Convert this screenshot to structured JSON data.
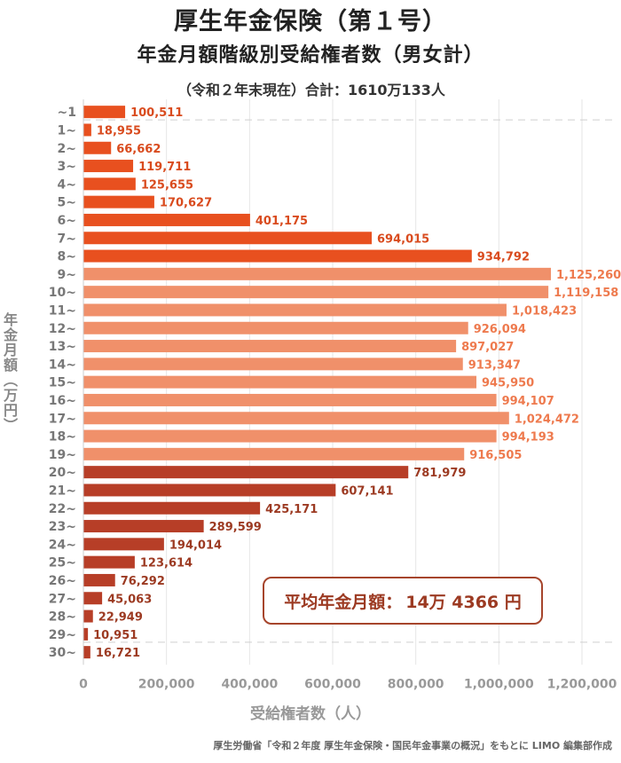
{
  "title1": "厚生年金保険（第１号）",
  "title2": "年金月額階級別受給権者数（男女計）",
  "subtitle": "（令和２年末現在）合計：1610万133人",
  "ylabel": "年金月額（万円）",
  "xlabel": "受給権者数（人）",
  "source": "厚生労働省「令和２年度 厚生年金保険・国民年金事業の概況」をもとに LIMO 編集部作成",
  "average": {
    "label": "平均年金月額：",
    "value": "14万 4366 円"
  },
  "colors": {
    "low": "#e8501f",
    "mid_low": "#ee7040",
    "mid_high": "#f0906a",
    "high": "#b73e27",
    "grid": "#e6e6e6",
    "tick": "#999999"
  },
  "chart_data": {
    "type": "bar",
    "orientation": "horizontal",
    "categories": [
      "~1",
      "1~",
      "2~",
      "3~",
      "4~",
      "5~",
      "6~",
      "7~",
      "8~",
      "9~",
      "10~",
      "11~",
      "12~",
      "13~",
      "14~",
      "15~",
      "16~",
      "17~",
      "18~",
      "19~",
      "20~",
      "21~",
      "22~",
      "23~",
      "24~",
      "25~",
      "26~",
      "27~",
      "28~",
      "29~",
      "30~"
    ],
    "values": [
      100511,
      18955,
      66662,
      119711,
      125655,
      170627,
      401175,
      694015,
      934792,
      1125260,
      1119158,
      1018423,
      926094,
      897027,
      913347,
      945950,
      994107,
      1024472,
      994193,
      916505,
      781979,
      607141,
      425171,
      289599,
      194014,
      123614,
      76292,
      45063,
      22949,
      10951,
      16721
    ],
    "value_labels": [
      "100,511",
      "18,955",
      "66,662",
      "119,711",
      "125,655",
      "170,627",
      "401,175",
      "694,015",
      "934,792",
      "1,125,260",
      "1,119,158",
      "1,018,423",
      "926,094",
      "897,027",
      "913,347",
      "945,950",
      "994,107",
      "1,024,472",
      "994,193",
      "916,505",
      "781,979",
      "607,141",
      "425,171",
      "289,599",
      "194,014",
      "123,614",
      "76,292",
      "45,063",
      "22,949",
      "10,951",
      "16,721"
    ],
    "xlim": [
      0,
      1200000
    ],
    "xticks": [
      0,
      200000,
      400000,
      600000,
      800000,
      1000000,
      1200000
    ],
    "xtick_labels": [
      "0",
      "200,000",
      "400,000",
      "600,000",
      "800,000",
      "1,000,000",
      "1,200,000"
    ],
    "grid": "vertical",
    "ylabel": "年金月額（万円）",
    "xlabel": "受給権者数（人）"
  }
}
